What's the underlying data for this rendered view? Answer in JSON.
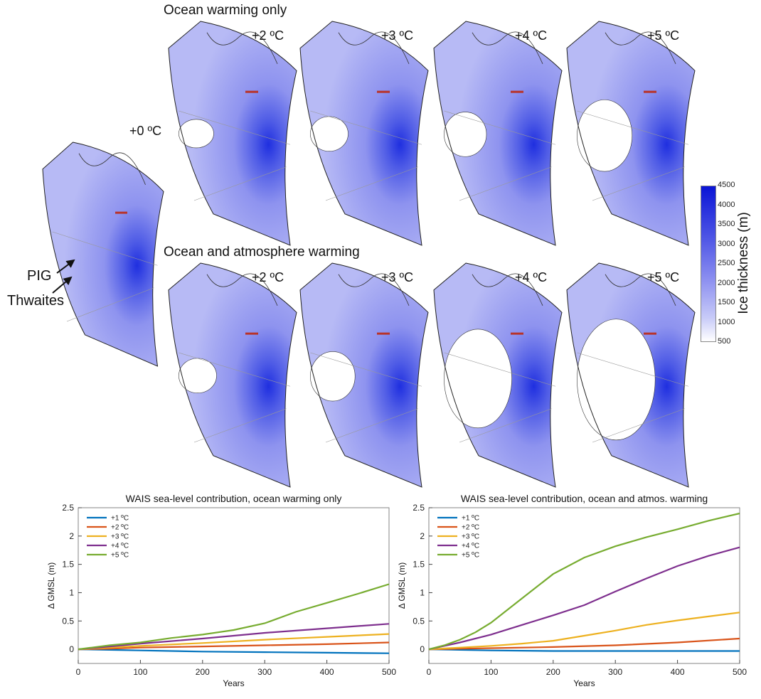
{
  "maps": {
    "section_ocean": "Ocean warming only",
    "section_both": "Ocean and atmosphere warming",
    "baseline": {
      "label": "+0 ºC",
      "retreat": 0
    },
    "ocean_only": [
      {
        "label": "+2 ºC",
        "retreat": 0.05
      },
      {
        "label": "+3 ºC",
        "retreat": 0.1
      },
      {
        "label": "+4 ºC",
        "retreat": 0.18
      },
      {
        "label": "+5 ºC",
        "retreat": 0.4
      }
    ],
    "ocean_atmos": [
      {
        "label": "+2 ºC",
        "retreat": 0.1
      },
      {
        "label": "+3 ºC",
        "retreat": 0.22
      },
      {
        "label": "+4 ºC",
        "retreat": 0.62
      },
      {
        "label": "+5 ºC",
        "retreat": 0.8
      }
    ],
    "annotations": {
      "pig": "PIG",
      "thwaites": "Thwaites"
    }
  },
  "colorbar": {
    "title": "Ice thickness (m)",
    "ticks": [
      "4500",
      "4000",
      "3500",
      "3000",
      "2500",
      "2000",
      "1500",
      "1000",
      "500"
    ],
    "colors": {
      "max": "#0a14d6",
      "mid": "#8c8ff0",
      "min": "#ffffff"
    }
  },
  "chart_data": [
    {
      "type": "line",
      "title": "WAIS sea-level contribution, ocean warming only",
      "xlabel": "Years",
      "ylabel": "Δ GMSL (m)",
      "xlim": [
        0,
        500
      ],
      "ylim": [
        -0.25,
        2.5
      ],
      "xticks": [
        "0",
        "100",
        "200",
        "300",
        "400",
        "500"
      ],
      "yticks": [
        "0",
        "0.5",
        "1",
        "1.5",
        "2",
        "2.5"
      ],
      "legend": "top-left",
      "series": [
        {
          "name": "+1 ºC",
          "color": "#0072bd",
          "x": [
            0,
            50,
            100,
            200,
            300,
            400,
            500
          ],
          "y": [
            0,
            -0.01,
            -0.02,
            -0.04,
            -0.05,
            -0.06,
            -0.07
          ]
        },
        {
          "name": "+2 ºC",
          "color": "#d95319",
          "x": [
            0,
            50,
            100,
            200,
            300,
            400,
            500
          ],
          "y": [
            0,
            0.01,
            0.03,
            0.05,
            0.07,
            0.09,
            0.12
          ]
        },
        {
          "name": "+3 ºC",
          "color": "#edb120",
          "x": [
            0,
            50,
            100,
            200,
            300,
            400,
            500
          ],
          "y": [
            0,
            0.03,
            0.06,
            0.11,
            0.17,
            0.22,
            0.27
          ]
        },
        {
          "name": "+4 ºC",
          "color": "#7e2f8e",
          "x": [
            0,
            50,
            100,
            200,
            300,
            400,
            500
          ],
          "y": [
            0,
            0.05,
            0.1,
            0.19,
            0.29,
            0.37,
            0.45
          ]
        },
        {
          "name": "+5 ºC",
          "color": "#77ac30",
          "x": [
            0,
            50,
            100,
            150,
            200,
            250,
            300,
            350,
            400,
            450,
            500
          ],
          "y": [
            0,
            0.07,
            0.12,
            0.2,
            0.26,
            0.34,
            0.46,
            0.66,
            0.82,
            0.98,
            1.15
          ]
        }
      ]
    },
    {
      "type": "line",
      "title": "WAIS sea-level contribution, ocean and atmos. warming",
      "xlabel": "Years",
      "ylabel": "Δ GMSL (m)",
      "xlim": [
        0,
        500
      ],
      "ylim": [
        -0.25,
        2.5
      ],
      "xticks": [
        "0",
        "100",
        "200",
        "300",
        "400",
        "500"
      ],
      "yticks": [
        "0",
        "0.5",
        "1",
        "1.5",
        "2",
        "2.5"
      ],
      "legend": "top-left",
      "series": [
        {
          "name": "+1 ºC",
          "color": "#0072bd",
          "x": [
            0,
            50,
            100,
            200,
            300,
            400,
            500
          ],
          "y": [
            0,
            -0.01,
            -0.02,
            -0.03,
            -0.03,
            -0.03,
            -0.03
          ]
        },
        {
          "name": "+2 ºC",
          "color": "#d95319",
          "x": [
            0,
            50,
            100,
            200,
            300,
            400,
            500
          ],
          "y": [
            0,
            0.01,
            0.02,
            0.04,
            0.07,
            0.12,
            0.19
          ]
        },
        {
          "name": "+3 ºC",
          "color": "#edb120",
          "x": [
            0,
            50,
            100,
            150,
            200,
            250,
            300,
            350,
            400,
            450,
            500
          ],
          "y": [
            0,
            0.03,
            0.06,
            0.1,
            0.15,
            0.24,
            0.33,
            0.43,
            0.51,
            0.58,
            0.65
          ]
        },
        {
          "name": "+4 ºC",
          "color": "#7e2f8e",
          "x": [
            0,
            50,
            100,
            150,
            200,
            250,
            300,
            350,
            400,
            450,
            500
          ],
          "y": [
            0,
            0.12,
            0.26,
            0.43,
            0.6,
            0.78,
            1.02,
            1.25,
            1.47,
            1.65,
            1.8
          ]
        },
        {
          "name": "+5 ºC",
          "color": "#77ac30",
          "x": [
            0,
            25,
            50,
            75,
            100,
            150,
            200,
            250,
            300,
            350,
            400,
            450,
            500
          ],
          "y": [
            0,
            0.07,
            0.17,
            0.3,
            0.47,
            0.9,
            1.33,
            1.62,
            1.82,
            1.98,
            2.12,
            2.27,
            2.4
          ]
        }
      ]
    }
  ]
}
